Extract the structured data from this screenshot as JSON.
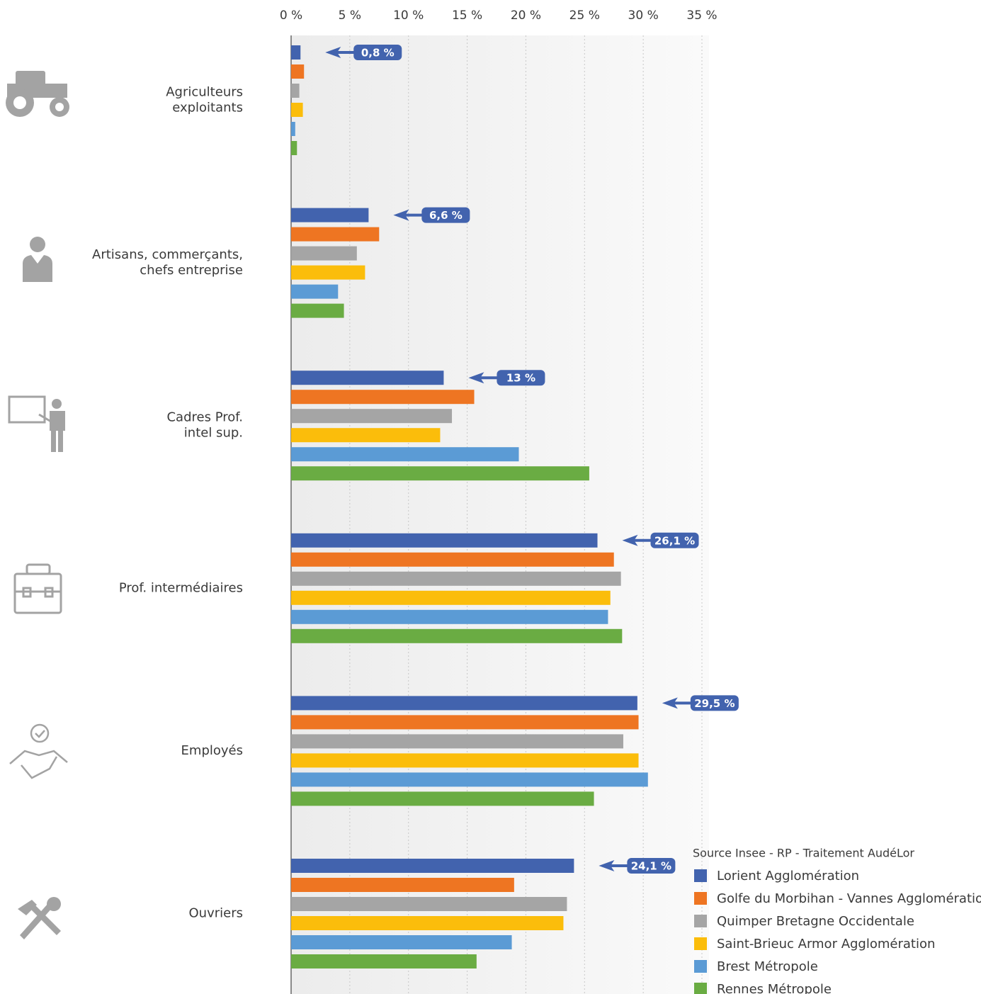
{
  "chart_data": {
    "type": "bar",
    "orientation": "horizontal",
    "source": "Source Insee - RP - Traitement AudéLor",
    "categories": [
      [
        "Agriculteurs",
        "exploitants"
      ],
      [
        "Artisans, commerçants,",
        "chefs entreprise"
      ],
      [
        "Cadres Prof.",
        "intel sup."
      ],
      [
        "Prof. intermédiaires"
      ],
      [
        "Employés"
      ],
      [
        "Ouvriers"
      ]
    ],
    "series": [
      {
        "name": "Lorient Agglomération",
        "color": "#4263ae",
        "values": [
          0.8,
          6.6,
          13,
          26.1,
          29.5,
          24.1
        ],
        "value_labels": [
          "0,8 %",
          "6,6 %",
          "13 %",
          "26,1 %",
          "29,5 %",
          "24,1 %"
        ]
      },
      {
        "name": "Golfe du Morbihan - Vannes Agglomération",
        "color": "#ee7522",
        "values": [
          1.1,
          7.5,
          15.6,
          27.5,
          29.6,
          19.0
        ]
      },
      {
        "name": "Quimper Bretagne Occidentale",
        "color": "#a5a5a5",
        "values": [
          0.7,
          5.6,
          13.7,
          28.1,
          28.3,
          23.5
        ]
      },
      {
        "name": "Saint-Brieuc Armor Agglomération",
        "color": "#fbbd0b",
        "values": [
          1.0,
          6.3,
          12.7,
          27.2,
          29.6,
          23.2
        ]
      },
      {
        "name": "Brest Métropole",
        "color": "#5b9bd5",
        "values": [
          0.35,
          4.0,
          19.4,
          27.0,
          30.4,
          18.8
        ]
      },
      {
        "name": "Rennes Métropole",
        "color": "#6aac43",
        "values": [
          0.5,
          4.5,
          25.4,
          28.2,
          25.8,
          15.8
        ]
      }
    ],
    "xlim": [
      0,
      35
    ],
    "xticks": [
      {
        "value": 0,
        "label": "0 %"
      },
      {
        "value": 5,
        "label": "5 %"
      },
      {
        "value": 10,
        "label": "10 %"
      },
      {
        "value": 15,
        "label": "15 %"
      },
      {
        "value": 20,
        "label": "20 %"
      },
      {
        "value": 25,
        "label": "25 %"
      },
      {
        "value": 30,
        "label": "30 %"
      },
      {
        "value": 35,
        "label": "35 %"
      }
    ],
    "grid": true
  }
}
